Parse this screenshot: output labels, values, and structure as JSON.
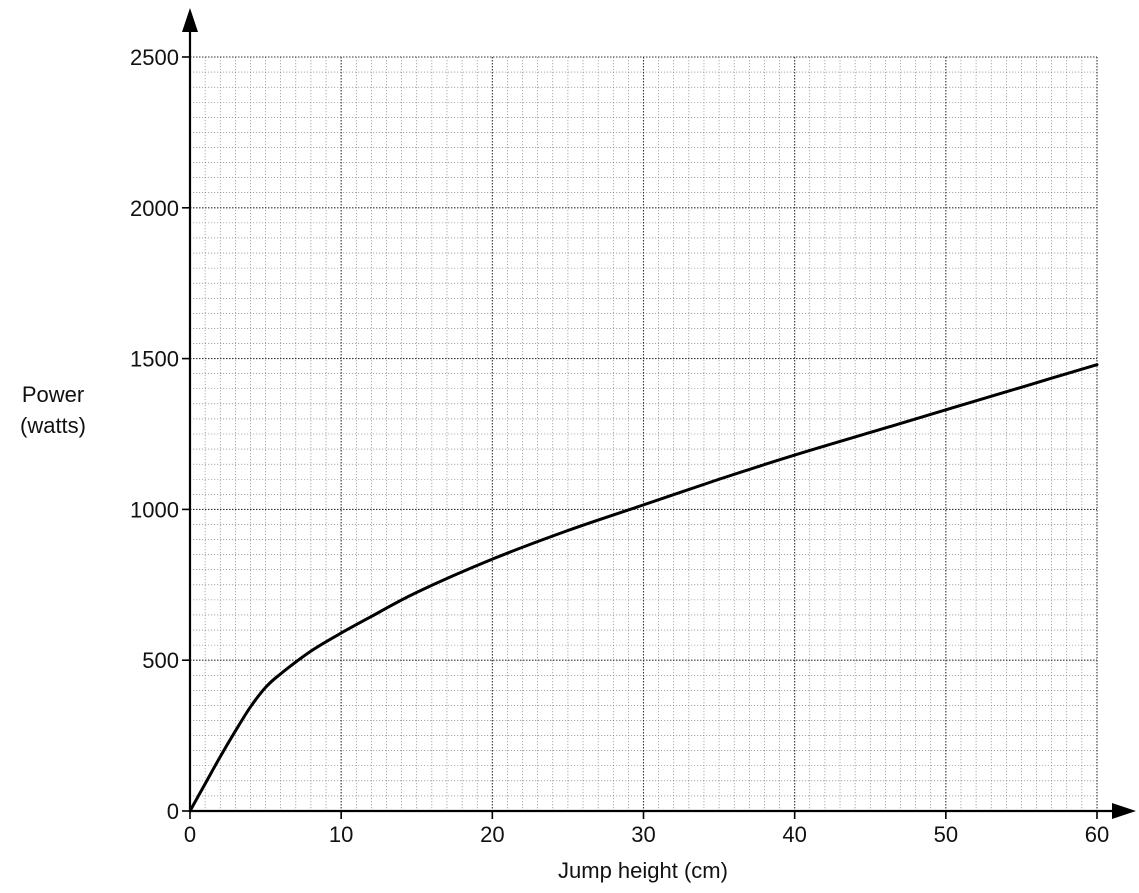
{
  "chart_data": {
    "type": "line",
    "title": "",
    "xlabel": "Jump height (cm)",
    "ylabel_lines": [
      "Power",
      "(watts)"
    ],
    "xlim": [
      0,
      60
    ],
    "ylim": [
      0,
      2500
    ],
    "x_ticks": [
      0,
      10,
      20,
      30,
      40,
      50,
      60
    ],
    "y_ticks": [
      0,
      500,
      1000,
      1500,
      2000,
      2500
    ],
    "grid": {
      "major_x_step": 10,
      "major_y_step": 500,
      "minor_x_step": 1,
      "minor_y_step": 50
    },
    "series": [
      {
        "x": [
          0,
          1,
          2,
          3,
          4,
          5,
          6,
          8,
          10,
          12,
          15,
          20,
          25,
          30,
          35,
          40,
          45,
          50,
          55,
          60
        ],
        "y": [
          0,
          90,
          180,
          265,
          345,
          410,
          455,
          530,
          590,
          645,
          725,
          835,
          930,
          1015,
          1100,
          1180,
          1255,
          1330,
          1405,
          1480
        ]
      }
    ],
    "colors": {
      "line": "#000000",
      "major_grid": "#333333",
      "minor_grid": "#777777",
      "axes": "#000000"
    }
  }
}
